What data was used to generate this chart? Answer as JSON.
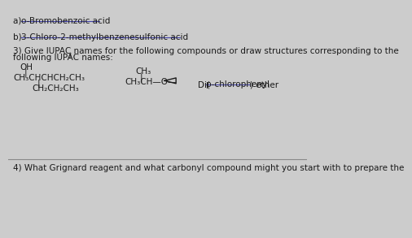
{
  "background_color": "#cccccc",
  "text_color": "#1a1a1a",
  "underline_color": "#4444aa",
  "line_color": "#888888",
  "fig_bg": "#cccccc",
  "section_a": "a) ",
  "section_a_text": "o-Bromobenzoic acid",
  "section_b": "b) ",
  "section_b_text": "3-Chloro-2-methylbenzenesulfonic acid",
  "section3_line1": "3) Give IUPAC names for the following compounds or draw structures corresponding to the",
  "section3_line2": "following IUPAC names:",
  "compound1_oh": "OH",
  "compound1_main": "CH₃CHCHCH₂CH₃",
  "compound1_branch": "CH₂CH₂CH₃",
  "compound2_top": "CH₃",
  "compound2_bottom": "CH₃CH—O—",
  "compound3_pre": "Di(",
  "compound3_mid": "p-chlorophenyl",
  "compound3_post": ") ether",
  "section4": "4) What Grignard reagent and what carbonyl compound might you start with to prepare the"
}
